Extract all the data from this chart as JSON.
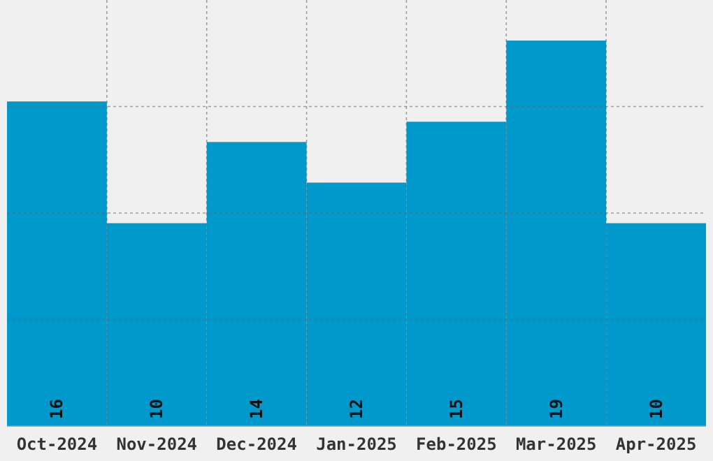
{
  "chart_data": {
    "type": "bar",
    "categories": [
      "Oct-2024",
      "Nov-2024",
      "Dec-2024",
      "Jan-2025",
      "Feb-2025",
      "Mar-2025",
      "Apr-2025"
    ],
    "values": [
      16,
      10,
      14,
      12,
      15,
      19,
      10
    ],
    "color": "#0099cc",
    "ylim": [
      0,
      21
    ],
    "yticks": [
      {
        "value": 5.25,
        "label": null
      },
      {
        "value": 10.5,
        "label": null
      },
      {
        "value": 15.75,
        "label": null
      }
    ],
    "grid": true,
    "tick_labels": "x",
    "data_labels": true
  }
}
